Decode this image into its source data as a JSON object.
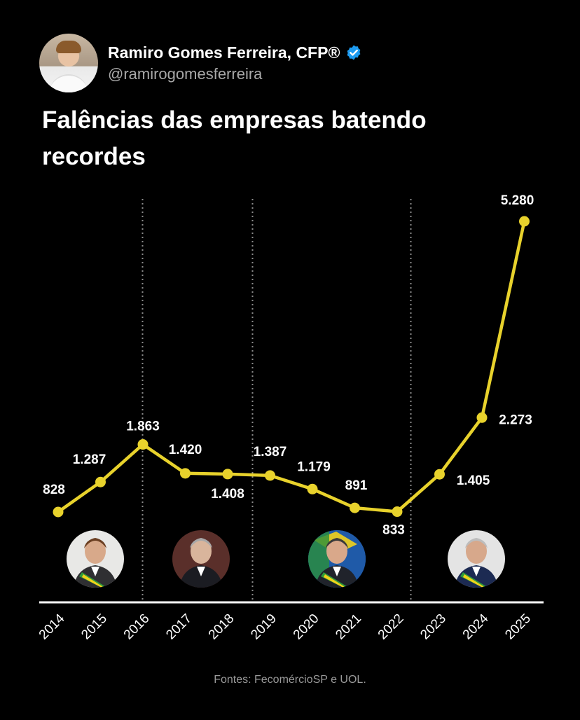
{
  "author": {
    "name": "Ramiro Gomes Ferreira, CFP®",
    "handle": "@ramirogomesferreira",
    "verified_icon": "verified-badge-icon"
  },
  "title": "Falências das empresas batendo recordes",
  "source": "Fontes: FecomércioSP e UOL.",
  "colors": {
    "background": "#000000",
    "line": "#e8d22c",
    "text": "#ffffff",
    "muted": "#9a9a9a",
    "verified": "#1d9bf0"
  },
  "chart_data": {
    "type": "line",
    "title": "Falências das empresas batendo recordes",
    "xlabel": "",
    "ylabel": "",
    "x": [
      "2014",
      "2015",
      "2016",
      "2017",
      "2018",
      "2019",
      "2020",
      "2021",
      "2022",
      "2023",
      "2024",
      "2025"
    ],
    "series": [
      {
        "values": [
          828,
          1287,
          1863,
          1420,
          1408,
          1387,
          1179,
          891,
          833,
          1405,
          2273,
          5280
        ],
        "labels": [
          "828",
          "1.287",
          "1.863",
          "1.420",
          "1.408",
          "1.387",
          "1.179",
          "891",
          "833",
          "1.405",
          "2.273",
          "5.280"
        ]
      }
    ],
    "ylim": [
      0,
      5500
    ],
    "grid": false,
    "legend": "none",
    "period_dividers_after": [
      "2016",
      "2019",
      "2022"
    ],
    "periods": [
      {
        "name": "dilma-portrait",
        "from": "2014",
        "to": "2016"
      },
      {
        "name": "temer-portrait",
        "from": "2016",
        "to": "2019"
      },
      {
        "name": "bolsonaro-portrait",
        "from": "2019",
        "to": "2022"
      },
      {
        "name": "lula-portrait",
        "from": "2022",
        "to": "2025"
      }
    ]
  }
}
